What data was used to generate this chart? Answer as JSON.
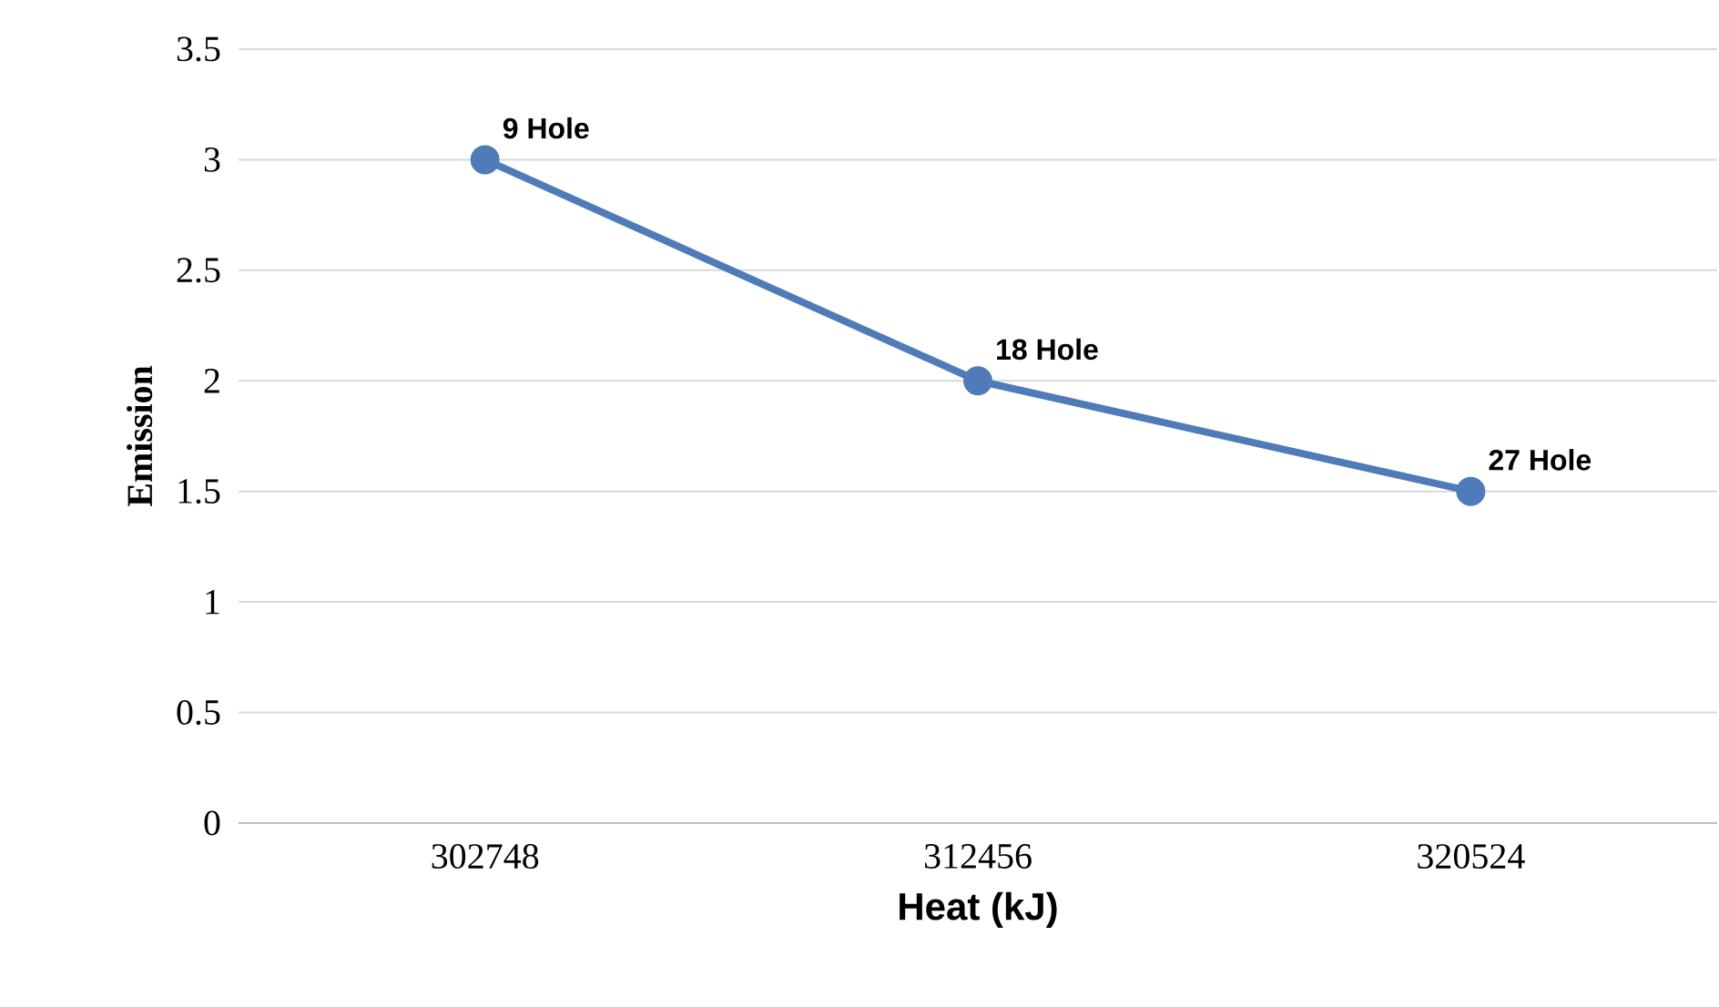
{
  "chart_data": {
    "type": "line",
    "categories": [
      "302748",
      "312456",
      "320524"
    ],
    "values": [
      3,
      2,
      1.5
    ],
    "color": "#4f7bb8",
    "marker": "circle",
    "grid": "y",
    "xlabel": "Heat (kJ)",
    "ylabel": "Emission",
    "ylim": [
      0,
      3.5
    ],
    "yticks": [
      0,
      0.5,
      1,
      1.5,
      2,
      2.5,
      3,
      3.5
    ],
    "annotations": [
      {
        "text": "9 Hole",
        "x": "302748",
        "y": 3
      },
      {
        "text": "18 Hole",
        "x": "312456",
        "y": 2
      },
      {
        "text": "27 Hole",
        "x": "320524",
        "y": 1.5
      }
    ]
  }
}
